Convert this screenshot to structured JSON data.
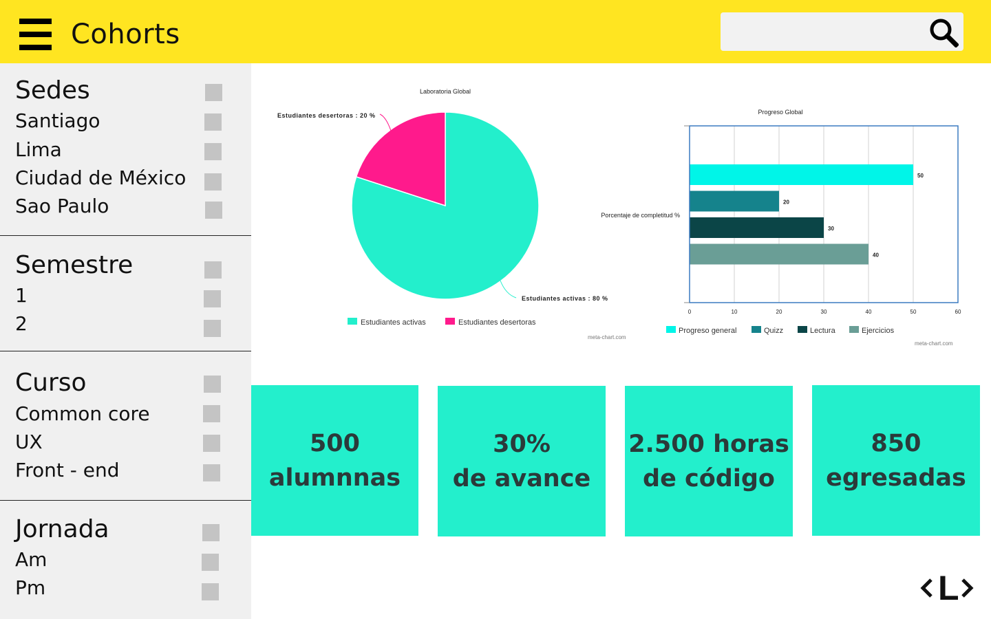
{
  "header": {
    "title": "Cohorts",
    "search_placeholder": "",
    "search_value": ""
  },
  "filters": [
    {
      "heading": "Sedes",
      "items": [
        "Santiago",
        "Lima",
        "Ciudad de México",
        "Sao Paulo"
      ]
    },
    {
      "heading": "Semestre",
      "items": [
        "1",
        "2"
      ]
    },
    {
      "heading": "Curso",
      "items": [
        "Common core",
        "UX",
        "Front - end"
      ]
    },
    {
      "heading": "Jornada",
      "items": [
        "Am",
        "Pm"
      ]
    }
  ],
  "chart_data": [
    {
      "type": "pie",
      "title": "Laboratoria Global",
      "slices": [
        {
          "name": "Estudiantes activas",
          "value": 80,
          "label": "Estudiantes activas : 80 %"
        },
        {
          "name": "Estudiantes desertoras",
          "value": 20,
          "label": "Estudiantes desertoras : 20 %"
        }
      ],
      "colors": [
        "#23efcc",
        "#ff1a8c"
      ],
      "credit": "meta-chart.com",
      "legend_position": "bottom"
    },
    {
      "type": "bar",
      "orientation": "horizontal",
      "title": "Progreso Global",
      "ylabel": "Porcentaje de completitud %",
      "series": [
        {
          "name": "Progreso general",
          "value": 50
        },
        {
          "name": "Quizz",
          "value": 20
        },
        {
          "name": "Lectura",
          "value": 30
        },
        {
          "name": "Ejercicios",
          "value": 40
        }
      ],
      "colors": [
        "#00f5e8",
        "#15838c",
        "#0b4547",
        "#6a9e96"
      ],
      "xlim": [
        0,
        60
      ],
      "xticks": [
        "0",
        "10",
        "20",
        "30",
        "40",
        "50",
        "60"
      ],
      "grid": true,
      "credit": "meta-chart.com",
      "legend_position": "bottom"
    }
  ],
  "stats": [
    {
      "line1": "500",
      "line2": "alumnnas"
    },
    {
      "line1": "30%",
      "line2": "de avance"
    },
    {
      "line1": "2.500 horas",
      "line2": "de código"
    },
    {
      "line1": "850",
      "line2": "egresadas"
    }
  ],
  "colors": {
    "header_bg": "#ffe521",
    "sidebar_bg": "#f0f0f0",
    "card_bg": "#23efcc",
    "checkbox": "#c4c4c4"
  },
  "logo": {
    "text": "L"
  }
}
